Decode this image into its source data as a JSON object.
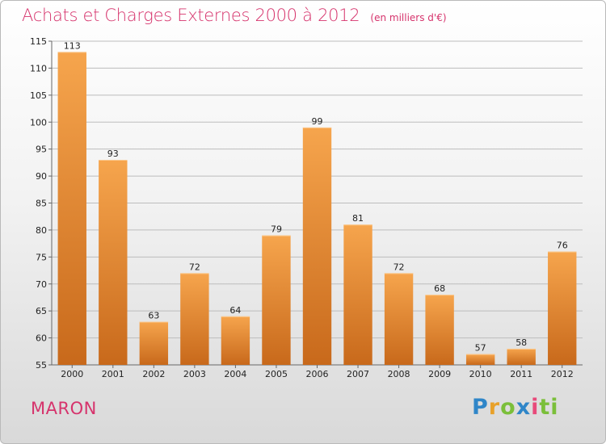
{
  "header": {
    "title": "Achats et Charges Externes 2000 à 2012",
    "unit": "(en milliers d'€)"
  },
  "footer": {
    "commune": "MARON",
    "brand_letters": [
      "P",
      "r",
      "o",
      "x",
      "i",
      "ti"
    ]
  },
  "colors": {
    "title": "#d6336c",
    "bar_light": "#f6a54d",
    "bar_dark": "#c8691b",
    "grid": "#bdbdbd"
  },
  "chart_data": {
    "type": "bar",
    "title": "Achats et Charges Externes 2000 à 2012",
    "xlabel": "",
    "ylabel": "",
    "categories": [
      "2000",
      "2001",
      "2002",
      "2003",
      "2004",
      "2005",
      "2006",
      "2007",
      "2008",
      "2009",
      "2010",
      "2011",
      "2012"
    ],
    "values": [
      113,
      93,
      63,
      72,
      64,
      79,
      99,
      81,
      72,
      68,
      57,
      58,
      76
    ],
    "ylim": [
      55,
      115
    ],
    "yticks": [
      55,
      60,
      65,
      70,
      75,
      80,
      85,
      90,
      95,
      100,
      105,
      110,
      115
    ],
    "grid": true,
    "data_labels": true
  }
}
